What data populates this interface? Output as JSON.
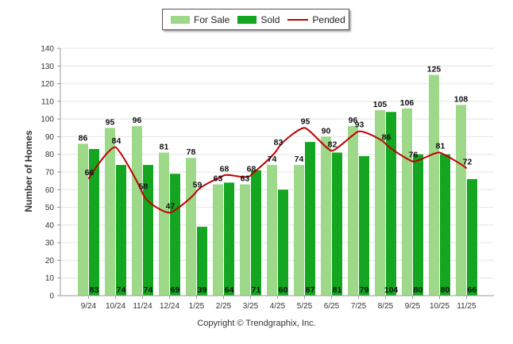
{
  "chart_data": {
    "type": "bar",
    "ylabel": "Number of Homes",
    "xlabel": "",
    "ylim": [
      0,
      140
    ],
    "yticks": [
      0,
      10,
      20,
      30,
      40,
      50,
      60,
      70,
      80,
      90,
      100,
      110,
      120,
      130,
      140
    ],
    "grid": true,
    "legend_position": "top-center",
    "categories": [
      "9/24",
      "10/24",
      "11/24",
      "12/24",
      "1/25",
      "2/25",
      "3/25",
      "4/25",
      "5/25",
      "6/25",
      "7/25",
      "8/25",
      "9/25",
      "10/25",
      "11/25"
    ],
    "series": [
      {
        "name": "For Sale",
        "kind": "bar",
        "values": [
          86,
          95,
          96,
          81,
          78,
          63,
          63,
          74,
          74,
          90,
          96,
          105,
          106,
          125,
          108
        ]
      },
      {
        "name": "Sold",
        "kind": "bar",
        "values": [
          83,
          74,
          74,
          69,
          39,
          64,
          71,
          60,
          87,
          81,
          79,
          104,
          80,
          80,
          66
        ]
      },
      {
        "name": "Pended",
        "kind": "line",
        "values": [
          66,
          84,
          58,
          47,
          59,
          68,
          68,
          83,
          95,
          82,
          93,
          86,
          76,
          81,
          72
        ]
      }
    ]
  },
  "legend": {
    "for_sale": "For Sale",
    "sold": "Sold",
    "pended": "Pended"
  },
  "colors": {
    "for_sale": "#9ed98a",
    "sold": "#15a621",
    "pended": "#c00000",
    "grid": "#e4e4e4",
    "axis": "#999999"
  },
  "copyright": "Copyright © Trendgraphix, Inc."
}
